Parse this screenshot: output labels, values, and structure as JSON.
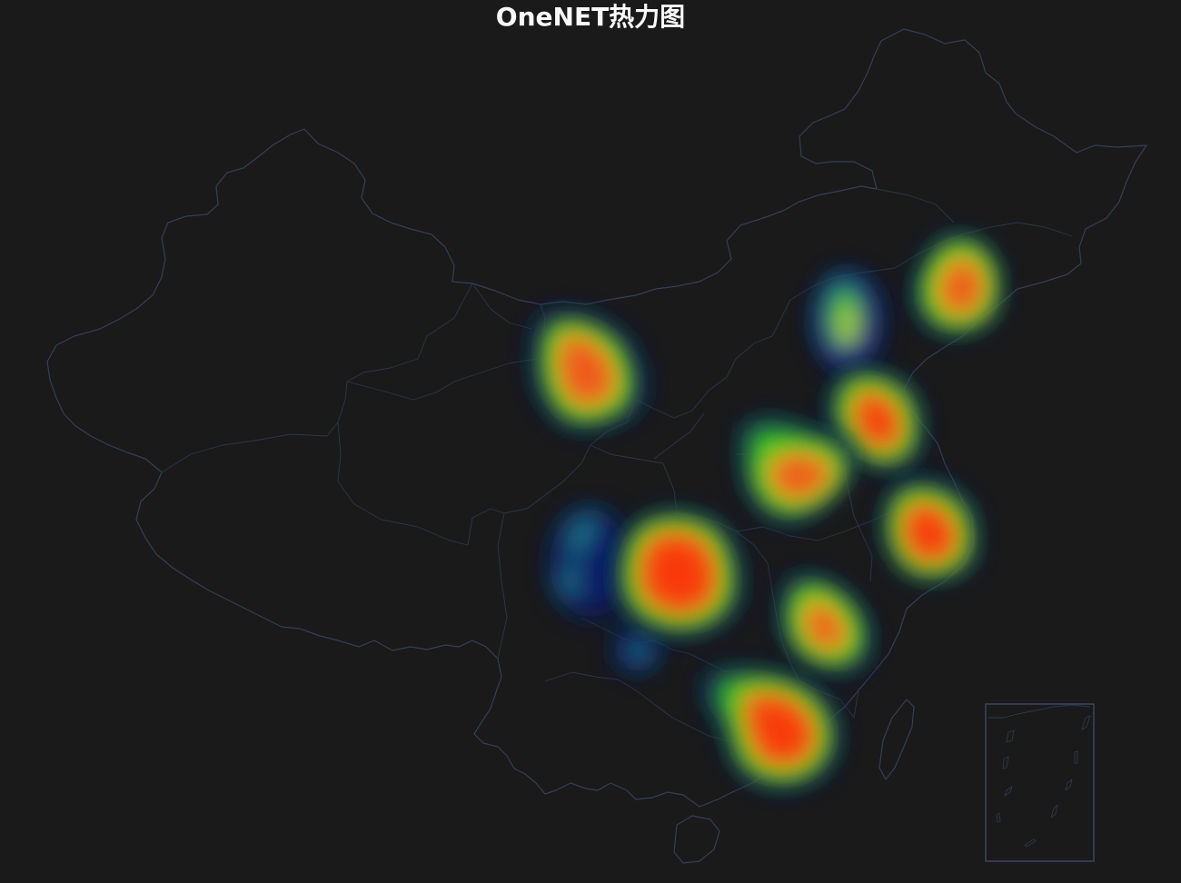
{
  "title": "OneNET热力图",
  "colors": {
    "background": "#1b1b1b",
    "border": "#36415a",
    "gradient": [
      "#0b1f6b",
      "#1a3a9a",
      "#1fa07a",
      "#2ec62b",
      "#d8e61c",
      "#f6a21a",
      "#ff3b10"
    ]
  },
  "heatmap": {
    "hotspots": [
      {
        "name": "ningxia-gansu-region",
        "intensity": 1.0
      },
      {
        "name": "sichuan-chongqing-region",
        "intensity": 1.0
      },
      {
        "name": "guangdong-region",
        "intensity": 1.0
      },
      {
        "name": "hunan-jiangxi-region",
        "intensity": 0.85
      },
      {
        "name": "jiangsu-zhejiang-region",
        "intensity": 1.0
      },
      {
        "name": "shandong-region",
        "intensity": 0.95
      },
      {
        "name": "henan-hubei-region",
        "intensity": 0.9
      },
      {
        "name": "liaoning-jilin-region",
        "intensity": 0.85
      },
      {
        "name": "hebei-region",
        "intensity": 0.45
      },
      {
        "name": "yunnan-region",
        "intensity": 0.25
      }
    ]
  }
}
